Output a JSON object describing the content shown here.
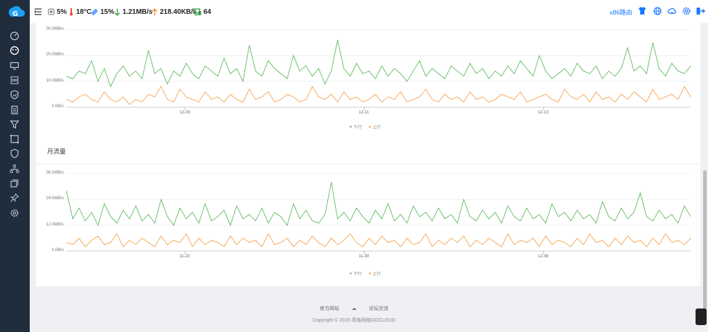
{
  "topbar": {
    "cpu": "5%",
    "temperature": "18°C",
    "memory": "15%",
    "download": "1.21MB/s",
    "upload": "218.40KB/s",
    "devices": "64",
    "router_name": "x86路由"
  },
  "sidebar": {
    "items": [
      "dashboard-icon",
      "status-icon",
      "monitor-icon",
      "network-icon",
      "security-icon",
      "list-icon",
      "filter-icon",
      "nat-icon",
      "shield-icon",
      "topology-icon",
      "storage-icon",
      "pin-icon",
      "settings-icon"
    ]
  },
  "chart_data": [
    {
      "type": "line",
      "title": "",
      "y_ticks": [
        "30.0MB/s",
        "20.0MB/s",
        "10.0MB/s",
        "0.0B/s"
      ],
      "ylim": [
        0,
        30
      ],
      "x_ticks": [
        "12-09",
        "12-11",
        "12-13"
      ],
      "series": [
        {
          "name": "下行",
          "color": "#5cb85c",
          "values": [
            12,
            11,
            14,
            13,
            18,
            10,
            15,
            8,
            13,
            16,
            12,
            14,
            11,
            22,
            13,
            15,
            9,
            14,
            12,
            17,
            13,
            11,
            16,
            14,
            12,
            19,
            13,
            15,
            10,
            24,
            14,
            12,
            18,
            15,
            13,
            11,
            20,
            14,
            16,
            12,
            15,
            9,
            14,
            26,
            15,
            12,
            17,
            13,
            14,
            11,
            16,
            12,
            15,
            13,
            10,
            14,
            18,
            12,
            15,
            13,
            11,
            16,
            14,
            12,
            17,
            13,
            15,
            11,
            14,
            12,
            16,
            13,
            18,
            15,
            12,
            20,
            14,
            11,
            13,
            15,
            12,
            17,
            14,
            13,
            16,
            11,
            14,
            12,
            15,
            23,
            14,
            16,
            13,
            25,
            15,
            12,
            17,
            14,
            13,
            16
          ]
        },
        {
          "name": "上行",
          "color": "#f5a04a",
          "values": [
            3,
            2,
            4,
            5,
            3,
            2,
            6,
            3,
            2,
            4,
            1,
            3,
            2,
            5,
            4,
            8,
            3,
            2,
            7,
            4,
            3,
            2,
            6,
            3,
            4,
            2,
            5,
            3,
            2,
            7,
            3,
            4,
            6,
            2,
            3,
            5,
            4,
            2,
            3,
            8,
            4,
            3,
            5,
            2,
            6,
            3,
            4,
            2,
            3,
            5,
            2,
            4,
            3,
            6,
            2,
            3,
            4,
            7,
            3,
            2,
            5,
            3,
            4,
            2,
            6,
            3,
            4,
            2,
            3,
            5,
            4,
            3,
            6,
            2,
            3,
            4,
            5,
            3,
            2,
            7,
            4,
            3,
            5,
            2,
            6,
            3,
            4,
            2,
            5,
            3,
            6,
            4,
            2,
            7,
            3,
            4,
            5,
            3,
            8,
            4
          ]
        }
      ]
    },
    {
      "type": "line",
      "title": "月流量",
      "y_ticks": [
        "36.0MB/s",
        "24.0MB/s",
        "12.0MB/s",
        "0.0B/s"
      ],
      "ylim": [
        0,
        36
      ],
      "x_ticks": [
        "11-22",
        "11-30",
        "12-08"
      ],
      "series": [
        {
          "name": "下行",
          "color": "#5cb85c",
          "values": [
            28,
            15,
            20,
            14,
            18,
            12,
            22,
            16,
            13,
            19,
            15,
            21,
            14,
            17,
            13,
            24,
            16,
            12,
            20,
            15,
            18,
            13,
            22,
            14,
            16,
            19,
            12,
            21,
            15,
            17,
            14,
            20,
            13,
            18,
            16,
            12,
            22,
            15,
            19,
            14,
            13,
            17,
            32,
            15,
            18,
            14,
            20,
            16,
            13,
            19,
            15,
            22,
            14,
            17,
            13,
            21,
            16,
            18,
            14,
            20,
            15,
            17,
            13,
            24,
            16,
            14,
            19,
            15,
            18,
            13,
            21,
            16,
            14,
            20,
            15,
            17,
            13,
            22,
            16,
            18,
            14,
            19,
            15,
            17,
            13,
            23,
            16,
            14,
            20,
            15,
            18,
            27,
            16,
            14,
            19,
            15,
            17,
            13,
            21,
            16
          ]
        },
        {
          "name": "上行",
          "color": "#f5a04a",
          "values": [
            4,
            3,
            6,
            2,
            5,
            7,
            3,
            4,
            8,
            2,
            5,
            3,
            6,
            4,
            2,
            7,
            3,
            5,
            4,
            8,
            2,
            6,
            3,
            5,
            4,
            2,
            7,
            3,
            6,
            4,
            5,
            2,
            8,
            3,
            4,
            6,
            2,
            5,
            3,
            7,
            4,
            2,
            6,
            3,
            5,
            8,
            4,
            2,
            6,
            3,
            7,
            4,
            5,
            2,
            6,
            3,
            4,
            8,
            2,
            5,
            3,
            6,
            4,
            7,
            2,
            5,
            3,
            6,
            4,
            2,
            8,
            3,
            5,
            4,
            6,
            2,
            7,
            3,
            5,
            4,
            2,
            6,
            3,
            8,
            4,
            5,
            2,
            6,
            3,
            7,
            4,
            5,
            2,
            6,
            3,
            8,
            4,
            5,
            3,
            6
          ]
        }
      ]
    }
  ],
  "main": {
    "section_title": "月流量"
  },
  "footer": {
    "official_site": "官方网站",
    "forum": "论坛交流",
    "copyright": "Copyright © 2020 高恪网络GOCLOUD"
  }
}
